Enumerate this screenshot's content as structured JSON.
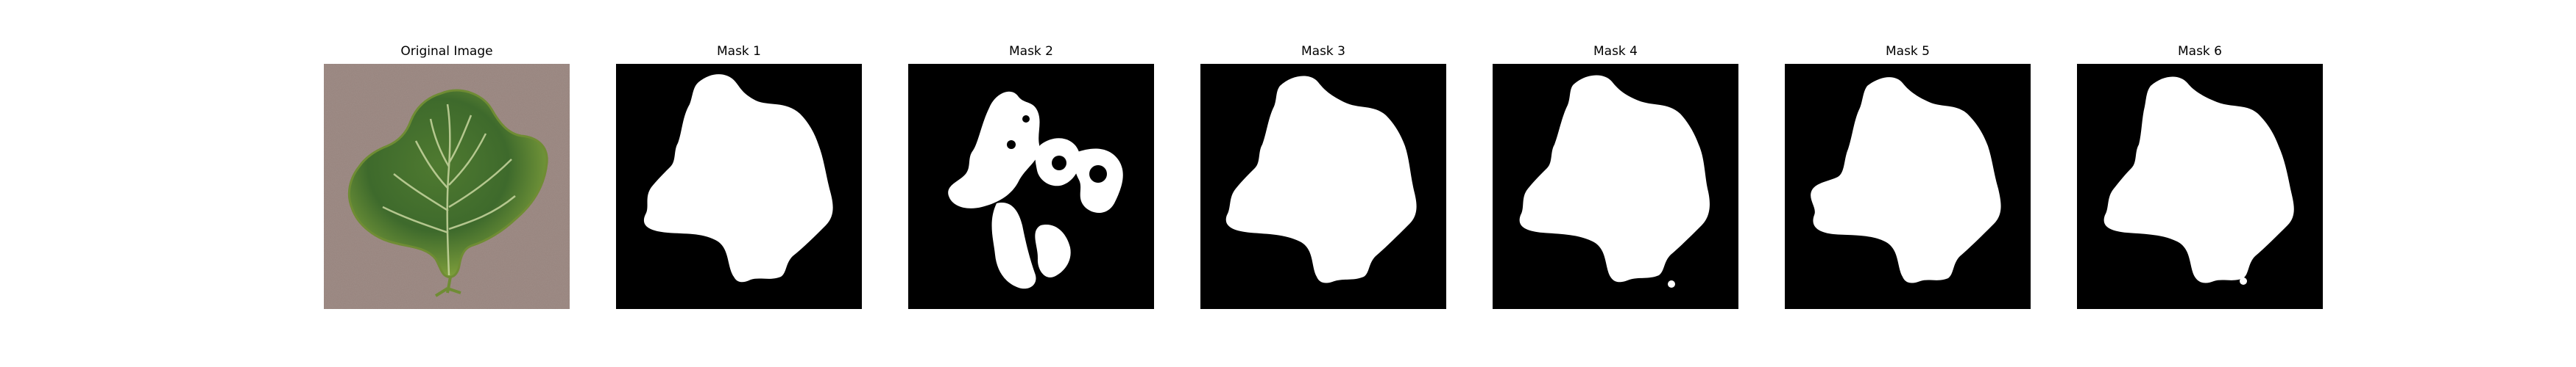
{
  "figure": {
    "panels": [
      {
        "title": "Original Image",
        "kind": "photo"
      },
      {
        "title": "Mask 1",
        "kind": "mask"
      },
      {
        "title": "Mask 2",
        "kind": "mask"
      },
      {
        "title": "Mask 3",
        "kind": "mask"
      },
      {
        "title": "Mask 4",
        "kind": "mask"
      },
      {
        "title": "Mask 5",
        "kind": "mask"
      },
      {
        "title": "Mask 6",
        "kind": "mask"
      }
    ]
  },
  "colors": {
    "mask_background": "#000000",
    "mask_foreground": "#ffffff",
    "photo_background": "#9c8a84",
    "leaf_dark": "#3e6a2c",
    "leaf_light": "#8aa83e",
    "leaf_vein": "#c9d7a0"
  }
}
